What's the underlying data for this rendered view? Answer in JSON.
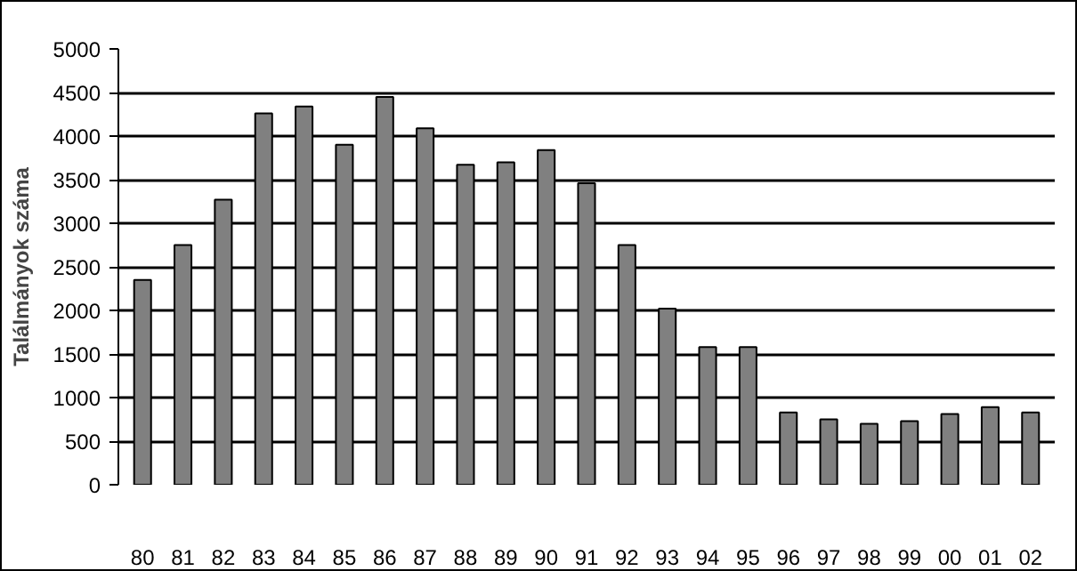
{
  "chart_data": {
    "type": "bar",
    "ylabel": "Találmányok száma",
    "categories": [
      "80",
      "81",
      "82",
      "83",
      "84",
      "85",
      "86",
      "87",
      "88",
      "89",
      "90",
      "91",
      "92",
      "93",
      "94",
      "95",
      "96",
      "97",
      "98",
      "99",
      "00",
      "01",
      "02"
    ],
    "values": [
      2350,
      2750,
      3270,
      4260,
      4340,
      3900,
      4450,
      4090,
      3670,
      3700,
      3840,
      3460,
      2750,
      2020,
      1580,
      1580,
      830,
      750,
      700,
      730,
      810,
      890,
      830
    ],
    "color": "#808080",
    "ylim": [
      0,
      5000
    ],
    "yticks": [
      0,
      500,
      1000,
      1500,
      2000,
      2500,
      3000,
      3500,
      4000,
      4500,
      5000
    ],
    "grid": "y"
  }
}
